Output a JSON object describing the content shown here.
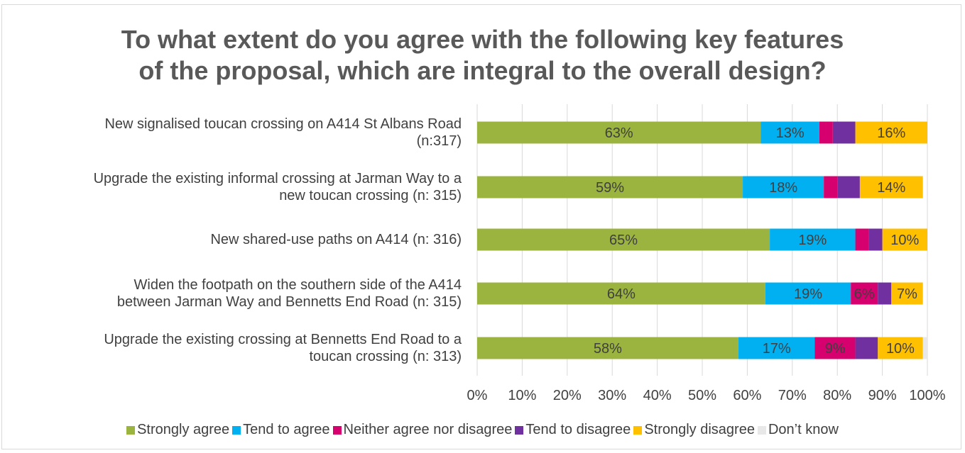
{
  "chart_data": {
    "type": "bar",
    "orientation": "horizontal",
    "stacked": "percent",
    "title_line1": "To what extent do you agree with the following key features",
    "title_line2": "of the proposal, which are integral to the overall design?",
    "categories": [
      [
        "New signalised toucan crossing on A414 St Albans Road",
        "(n:317)"
      ],
      [
        "Upgrade the existing informal crossing at Jarman Way to a",
        "new toucan crossing (n: 315)"
      ],
      [
        "New shared-use paths on A414 (n: 316)"
      ],
      [
        "Widen the footpath on the southern side of the A414",
        "between Jarman Way and Bennetts End Road (n: 315)"
      ],
      [
        "Upgrade the existing crossing at Bennetts End Road to a",
        "toucan crossing (n: 313)"
      ]
    ],
    "series": [
      {
        "name": "Strongly agree",
        "color": "#9bb33f",
        "values": [
          63,
          59,
          65,
          64,
          58
        ],
        "labels": [
          "63%",
          "59%",
          "65%",
          "64%",
          "58%"
        ]
      },
      {
        "name": "Tend to agree",
        "color": "#00b0f0",
        "values": [
          13,
          18,
          19,
          19,
          17
        ],
        "labels": [
          "13%",
          "18%",
          "19%",
          "19%",
          "17%"
        ]
      },
      {
        "name": "Neither agree nor disagree",
        "color": "#d6006f",
        "values": [
          3,
          3,
          3,
          6,
          9
        ],
        "labels": [
          "",
          "",
          "",
          "6%",
          "9%"
        ]
      },
      {
        "name": "Tend to disagree",
        "color": "#7030a0",
        "values": [
          5,
          5,
          3,
          3,
          5
        ],
        "labels": [
          "",
          "",
          "",
          "",
          ""
        ]
      },
      {
        "name": "Strongly disagree",
        "color": "#ffc000",
        "values": [
          16,
          14,
          10,
          7,
          10
        ],
        "labels": [
          "16%",
          "14%",
          "10%",
          "7%",
          "10%"
        ]
      },
      {
        "name": "Don’t know",
        "color": "#e8e8e8",
        "values": [
          0,
          0,
          0,
          0,
          1
        ],
        "labels": [
          "",
          "",
          "",
          "",
          ""
        ]
      }
    ],
    "xticks": [
      "0%",
      "10%",
      "20%",
      "30%",
      "40%",
      "50%",
      "60%",
      "70%",
      "80%",
      "90%",
      "100%"
    ],
    "xlim": [
      0,
      100
    ],
    "grid": true,
    "legend_position": "bottom"
  }
}
